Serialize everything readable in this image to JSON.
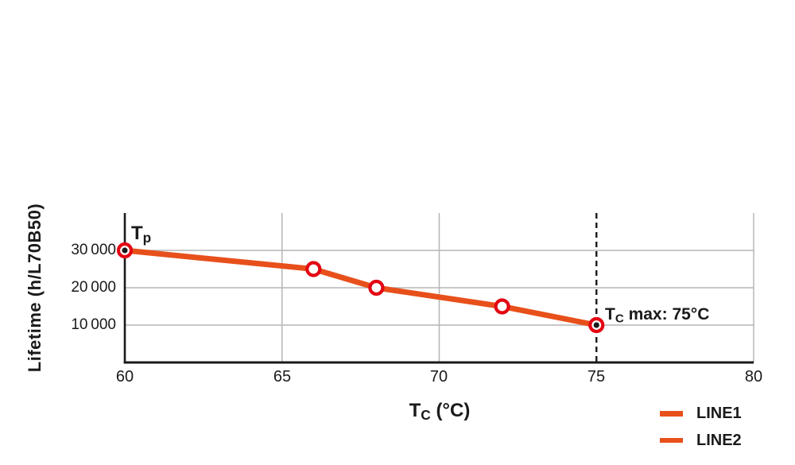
{
  "chart_data": {
    "type": "line",
    "ylabel": "Lifetime (h/L70B50)",
    "xlabel": {
      "main": "T",
      "sub": "C",
      "rest": " (°C)"
    },
    "xlim": [
      60,
      80
    ],
    "ylim": [
      0,
      40000
    ],
    "x_ticks": [
      "60",
      "65",
      "70",
      "75",
      "80"
    ],
    "x_tick_values": [
      60,
      65,
      70,
      75,
      80
    ],
    "y_ticks": [
      {
        "value": 30000,
        "label": "30 000"
      },
      {
        "value": 20000,
        "label": "20 000"
      },
      {
        "value": 10000,
        "label": "10 000"
      }
    ],
    "grid": {
      "vertical_at": [
        65,
        70,
        80
      ],
      "horizontal_at": [
        30000,
        20000,
        10000
      ],
      "color": "#b5b5b5"
    },
    "reference_line": {
      "x": 75,
      "style": "dashed",
      "color": "#1a1a1a"
    },
    "series": [
      {
        "name": "LINE1",
        "color": "#E8501B",
        "points": [
          {
            "x": 60,
            "y": 30000,
            "end_dot": true
          },
          {
            "x": 66,
            "y": 25000
          },
          {
            "x": 68,
            "y": 20000
          },
          {
            "x": 72,
            "y": 15000
          },
          {
            "x": 75,
            "y": 10000,
            "end_dot": true
          }
        ]
      }
    ],
    "marker": {
      "stroke": "#E30613",
      "fill": "#ffffff",
      "dot_color": "#1a1a1a"
    },
    "annotations": [
      {
        "id": "tp",
        "main": "T",
        "sub": "p",
        "rest": ""
      },
      {
        "id": "tc-max",
        "main": "T",
        "sub": "C",
        "rest": " max: 75°C"
      }
    ],
    "legend": [
      {
        "label": "LINE1",
        "color": "#E8501B"
      },
      {
        "label": "LINE2",
        "color": "#E8501B"
      }
    ],
    "axis_color": "#1a1a1a"
  }
}
